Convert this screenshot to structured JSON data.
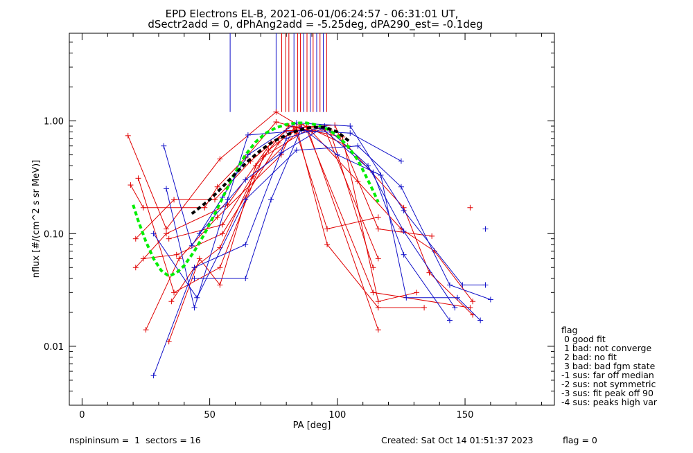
{
  "chart_data": {
    "type": "line",
    "title_line1": "EPD Electrons EL-B, 2021-06-01/06:24:57 - 06:31:01 UT,",
    "title_line2": "dSectr2add = 0, dPhAng2add = -5.25deg, dPA290_est=  -0.1deg",
    "xlabel": "PA [deg]",
    "ylabel": "nflux [#/(cm^2 s sr MeV)]",
    "xlim": [
      -5,
      185
    ],
    "ylim": [
      0.003,
      6
    ],
    "yscale": "log",
    "xticks": [
      0,
      50,
      100,
      150
    ],
    "xtick_labels": [
      "0",
      "50",
      "100",
      "150"
    ],
    "yticks": [
      0.01,
      0.1,
      1.0
    ],
    "ytick_labels": [
      "0.01",
      "0.10",
      "1.00"
    ],
    "colors": {
      "red": "#e00000",
      "blue": "#1010c8",
      "green": "#00ee00",
      "black": "#000000"
    },
    "series": [
      {
        "color": "red",
        "points": [
          [
            18,
            0.74
          ],
          [
            33,
            0.11
          ],
          [
            54,
            0.46
          ],
          [
            76,
            1.2
          ],
          [
            86,
            0.88
          ],
          [
            99,
            0.92
          ],
          [
            116,
            0.11
          ],
          [
            137,
            0.095
          ]
        ]
      },
      {
        "color": "red",
        "points": [
          [
            19,
            0.27
          ],
          [
            24,
            0.17
          ],
          [
            48,
            0.17
          ],
          [
            53,
            0.26
          ],
          [
            64,
            0.47
          ],
          [
            76,
            0.98
          ],
          [
            90,
            0.8
          ],
          [
            108,
            0.29
          ],
          [
            125,
            0.11
          ],
          [
            138,
            0.07
          ],
          [
            153,
            0.025
          ]
        ]
      },
      {
        "color": "red",
        "points": [
          [
            21,
            0.09
          ],
          [
            36,
            0.2
          ],
          [
            52,
            0.2
          ],
          [
            66,
            0.44
          ],
          [
            80,
            0.82
          ],
          [
            97,
            0.83
          ],
          [
            114,
            0.05
          ]
        ]
      },
      {
        "color": "red",
        "points": [
          [
            21,
            0.05
          ],
          [
            33,
            0.1
          ],
          [
            57,
            0.18
          ],
          [
            74,
            0.64
          ],
          [
            88,
            0.9
          ],
          [
            116,
            0.014
          ]
        ]
      },
      {
        "color": "red",
        "points": [
          [
            24,
            0.06
          ],
          [
            37,
            0.065
          ],
          [
            55,
            0.1
          ],
          [
            77,
            0.64
          ],
          [
            84,
            0.88
          ],
          [
            96,
            0.08
          ],
          [
            116,
            0.022
          ],
          [
            134,
            0.022
          ]
        ]
      },
      {
        "color": "red",
        "points": [
          [
            22,
            0.31
          ],
          [
            36,
            0.03
          ],
          [
            54,
            0.05
          ],
          [
            71,
            0.48
          ],
          [
            88,
            0.83
          ],
          [
            114,
            0.03
          ],
          [
            152,
            0.022
          ]
        ]
      },
      {
        "color": "red",
        "points": [
          [
            25,
            0.014
          ],
          [
            38,
            0.06
          ],
          [
            53,
            0.14
          ],
          [
            78,
            0.5
          ],
          [
            83,
            0.88
          ],
          [
            102,
            0.72
          ],
          [
            116,
            0.025
          ],
          [
            131,
            0.03
          ]
        ]
      },
      {
        "color": "red",
        "points": [
          [
            34,
            0.011
          ],
          [
            46,
            0.06
          ],
          [
            54,
            0.035
          ],
          [
            68,
            0.4
          ],
          [
            81,
            0.9
          ],
          [
            95,
            0.85
          ],
          [
            116,
            0.06
          ]
        ]
      },
      {
        "color": "red",
        "points": [
          [
            35,
            0.025
          ],
          [
            44,
            0.05
          ],
          [
            54,
            0.075
          ],
          [
            67,
            0.32
          ],
          [
            84,
            0.78
          ],
          [
            96,
            0.11
          ],
          [
            116,
            0.14
          ]
        ]
      },
      {
        "color": "red",
        "points": [
          [
            34,
            0.09
          ],
          [
            55,
            0.12
          ],
          [
            73,
            0.55
          ],
          [
            86,
            0.93
          ],
          [
            104,
            0.6
          ],
          [
            126,
            0.17
          ],
          [
            136,
            0.045
          ],
          [
            153,
            0.019
          ]
        ]
      },
      {
        "color": "blue",
        "points": [
          [
            32,
            0.6
          ],
          [
            43,
            0.078
          ],
          [
            55,
            0.21
          ],
          [
            65,
            0.5
          ],
          [
            84,
            0.96
          ],
          [
            105,
            0.9
          ],
          [
            126,
            0.16
          ],
          [
            149,
            0.035
          ],
          [
            158,
            0.035
          ]
        ]
      },
      {
        "color": "blue",
        "points": [
          [
            28,
            0.0055
          ],
          [
            44,
            0.05
          ],
          [
            64,
            0.08
          ],
          [
            80,
            0.7
          ],
          [
            95,
            0.9
          ],
          [
            112,
            0.4
          ],
          [
            126,
            0.105
          ],
          [
            146,
            0.022
          ]
        ]
      },
      {
        "color": "blue",
        "points": [
          [
            33,
            0.25
          ],
          [
            44,
            0.022
          ],
          [
            57,
            0.2
          ],
          [
            65,
            0.75
          ],
          [
            86,
            0.82
          ],
          [
            105,
            0.78
          ],
          [
            125,
            0.44
          ]
        ]
      },
      {
        "color": "blue",
        "points": [
          [
            28,
            0.1
          ],
          [
            45,
            0.027
          ],
          [
            64,
            0.2
          ],
          [
            84,
            0.55
          ],
          [
            108,
            0.6
          ],
          [
            125,
            0.26
          ],
          [
            144,
            0.035
          ],
          [
            160,
            0.026
          ]
        ]
      },
      {
        "color": "blue",
        "points": [
          [
            44,
            0.04
          ],
          [
            64,
            0.04
          ],
          [
            74,
            0.2
          ],
          [
            86,
            0.87
          ],
          [
            100,
            0.5
          ],
          [
            117,
            0.33
          ],
          [
            127,
            0.027
          ],
          [
            147,
            0.027
          ],
          [
            156,
            0.017
          ]
        ]
      },
      {
        "color": "blue",
        "points": [
          [
            46,
            0.1
          ],
          [
            64,
            0.3
          ],
          [
            78,
            0.52
          ],
          [
            94,
            0.86
          ],
          [
            114,
            0.35
          ],
          [
            126,
            0.065
          ],
          [
            144,
            0.017
          ]
        ]
      }
    ],
    "isolated_points": [
      {
        "color": "red",
        "x": 152,
        "y": 0.17
      },
      {
        "color": "blue",
        "x": 158,
        "y": 0.11
      }
    ],
    "fit_lines": [
      {
        "color": "green",
        "style": "dashed-thick",
        "points": [
          [
            20,
            0.18
          ],
          [
            22,
            0.13
          ],
          [
            25,
            0.085
          ],
          [
            28,
            0.06
          ],
          [
            31,
            0.047
          ],
          [
            34,
            0.042
          ],
          [
            37,
            0.045
          ],
          [
            40,
            0.052
          ],
          [
            44,
            0.07
          ],
          [
            48,
            0.1
          ],
          [
            52,
            0.15
          ],
          [
            56,
            0.23
          ],
          [
            60,
            0.35
          ],
          [
            64,
            0.5
          ],
          [
            68,
            0.65
          ],
          [
            72,
            0.78
          ],
          [
            76,
            0.87
          ],
          [
            80,
            0.93
          ],
          [
            84,
            0.96
          ],
          [
            88,
            0.96
          ],
          [
            92,
            0.92
          ],
          [
            96,
            0.85
          ],
          [
            100,
            0.74
          ],
          [
            104,
            0.6
          ],
          [
            108,
            0.45
          ],
          [
            111,
            0.33
          ],
          [
            114,
            0.24
          ],
          [
            116,
            0.19
          ]
        ]
      },
      {
        "color": "black",
        "style": "dashed-thick",
        "points": [
          [
            43,
            0.15
          ],
          [
            50,
            0.2
          ],
          [
            55,
            0.26
          ],
          [
            60,
            0.34
          ],
          [
            65,
            0.44
          ],
          [
            70,
            0.55
          ],
          [
            75,
            0.66
          ],
          [
            80,
            0.75
          ],
          [
            85,
            0.83
          ],
          [
            90,
            0.88
          ],
          [
            95,
            0.88
          ],
          [
            100,
            0.8
          ],
          [
            105,
            0.65
          ]
        ]
      }
    ],
    "vertical_markers": [
      {
        "x": 58.0,
        "color": "blue"
      },
      {
        "x": 76.0,
        "color": "blue"
      },
      {
        "x": 78.2,
        "color": "red"
      },
      {
        "x": 79.8,
        "color": "red"
      },
      {
        "x": 81.0,
        "color": "red"
      },
      {
        "x": 83.0,
        "color": "blue"
      },
      {
        "x": 84.4,
        "color": "red"
      },
      {
        "x": 85.5,
        "color": "red"
      },
      {
        "x": 86.8,
        "color": "blue"
      },
      {
        "x": 88.1,
        "color": "red"
      },
      {
        "x": 89.4,
        "color": "blue"
      },
      {
        "x": 90.5,
        "color": "red"
      },
      {
        "x": 91.9,
        "color": "blue"
      },
      {
        "x": 93.2,
        "color": "red"
      },
      {
        "x": 94.5,
        "color": "blue"
      },
      {
        "x": 95.8,
        "color": "red"
      }
    ],
    "vertical_marker_bottom_y": 1.2,
    "legend": {
      "title": "flag",
      "entries": [
        " 0 good fit",
        " 1 bad: not converge",
        " 2 bad: no fit",
        " 3 bad: bad fgm state",
        "-1 sus: far off median",
        "-2 sus: not symmetric",
        "-3 sus: fit peak off 90",
        "-4 sus: peaks high var"
      ]
    }
  },
  "footer": {
    "left": "nspininsum =  1  sectors = 16",
    "created": "Created: Sat Oct 14 01:51:37 2023",
    "flag": "flag = 0"
  }
}
